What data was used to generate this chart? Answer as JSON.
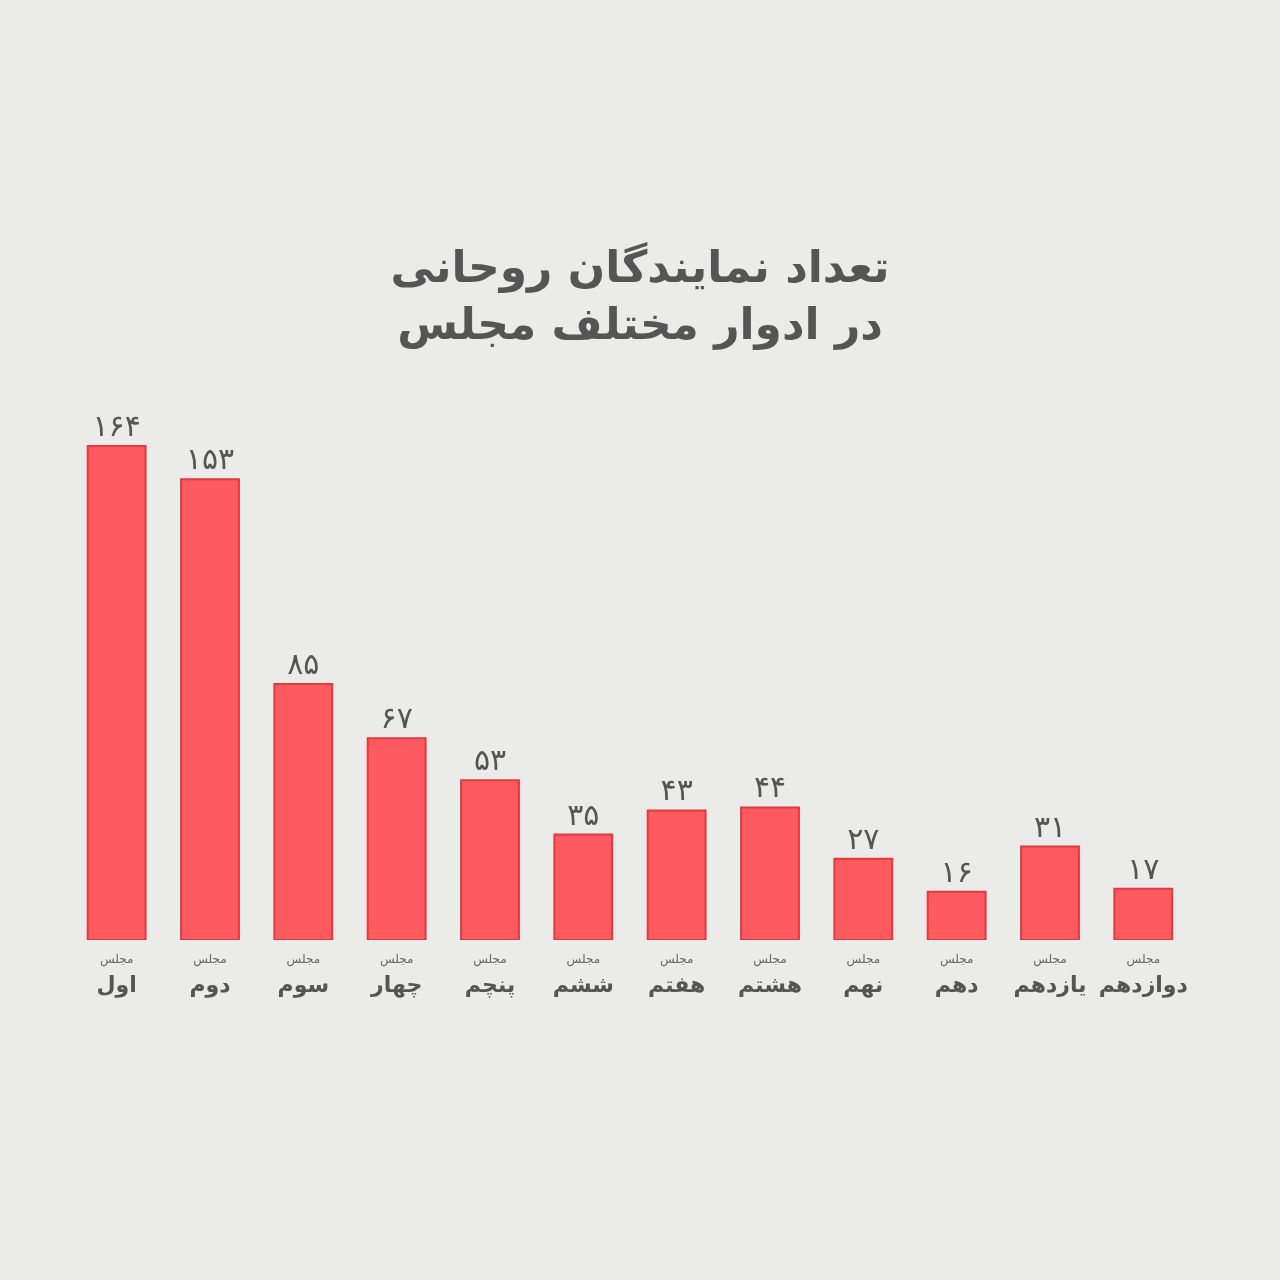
{
  "chart_data": {
    "type": "bar",
    "title": "تعداد نمایندگان روحانی",
    "subtitle": "در ادوار مختلف مجلس",
    "categories": [
      "مجلس اول",
      "مجلس دوم",
      "مجلس سوم",
      "مجلس چهار",
      "مجلس پنچم",
      "مجلس ششم",
      "مجلس هفتم",
      "مجلس هشتم",
      "مجلس نهم",
      "مجلس دهم",
      "مجلس یازدهم",
      "مجلس دوازدهم"
    ],
    "values": [
      164,
      153,
      85,
      67,
      53,
      35,
      43,
      44,
      27,
      16,
      31,
      17
    ],
    "value_labels": [
      "۱۶۴",
      "۱۵۳",
      "۸۵",
      "۶۷",
      "۵۳",
      "۳۵",
      "۴۳",
      "۴۴",
      "۲۷",
      "۱۶",
      "۳۱",
      "۱۷"
    ],
    "color": "#ff5a5f",
    "grid": false,
    "legend": false
  }
}
